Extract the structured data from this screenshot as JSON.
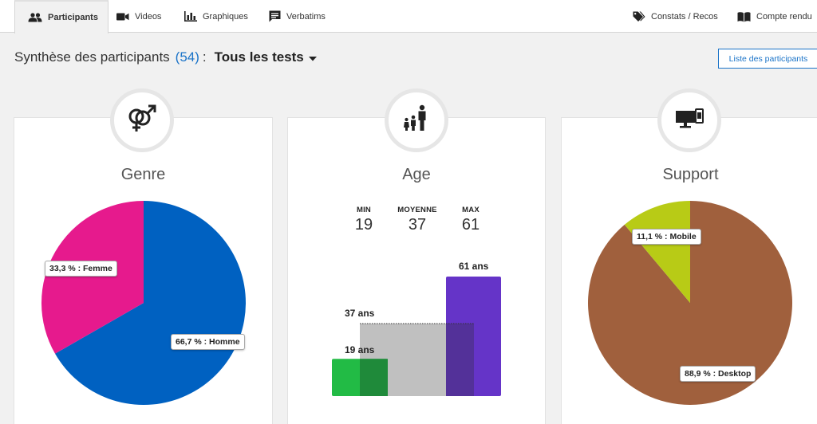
{
  "nav": {
    "tabs": [
      {
        "label": "Participants",
        "icon": "people-icon"
      },
      {
        "label": "Videos",
        "icon": "video-camera-icon"
      },
      {
        "label": "Graphiques",
        "icon": "bar-chart-icon"
      },
      {
        "label": "Verbatims",
        "icon": "comment-icon"
      }
    ],
    "right_tabs": [
      {
        "label": "Constats / Recos",
        "icon": "tags-icon"
      },
      {
        "label": "Compte rendu",
        "icon": "book-icon"
      }
    ]
  },
  "header": {
    "title": "Synthèse des participants",
    "count": "(54)",
    "colon": ":",
    "filter": "Tous les tests",
    "list_button": "Liste des participants"
  },
  "colors": {
    "accent": "#1a73c8",
    "homme": "#0061c1",
    "femme": "#e61a8d",
    "desktop": "#a0603d",
    "mobile": "#b8cb16",
    "age_min": "#22bb45",
    "age_avg": "#c0c0c0",
    "age_max": "#6534c8"
  },
  "cards": {
    "genre": {
      "title": "Genre",
      "icon": "gender-icon"
    },
    "age": {
      "title": "Age",
      "icon": "family-icon",
      "stats": [
        {
          "key": "MIN",
          "value": "19"
        },
        {
          "key": "MOYENNE",
          "value": "37"
        },
        {
          "key": "MAX",
          "value": "61"
        }
      ]
    },
    "support": {
      "title": "Support",
      "icon": "devices-icon"
    }
  },
  "chart_data": [
    {
      "type": "pie",
      "title": "Genre",
      "slices": [
        {
          "name": "Homme",
          "value": 66.7,
          "label": "66,7 % : Homme"
        },
        {
          "name": "Femme",
          "value": 33.3,
          "label": "33,3 % : Femme"
        }
      ]
    },
    {
      "type": "bar",
      "title": "Age",
      "categories": [
        "MIN",
        "MOYENNE",
        "MAX"
      ],
      "values": [
        19,
        37,
        61
      ],
      "labels": [
        "19 ans",
        "37 ans",
        "61 ans"
      ]
    },
    {
      "type": "pie",
      "title": "Support",
      "slices": [
        {
          "name": "Desktop",
          "value": 88.9,
          "label": "88,9 % : Desktop"
        },
        {
          "name": "Mobile",
          "value": 11.1,
          "label": "11,1 % : Mobile"
        }
      ]
    }
  ]
}
